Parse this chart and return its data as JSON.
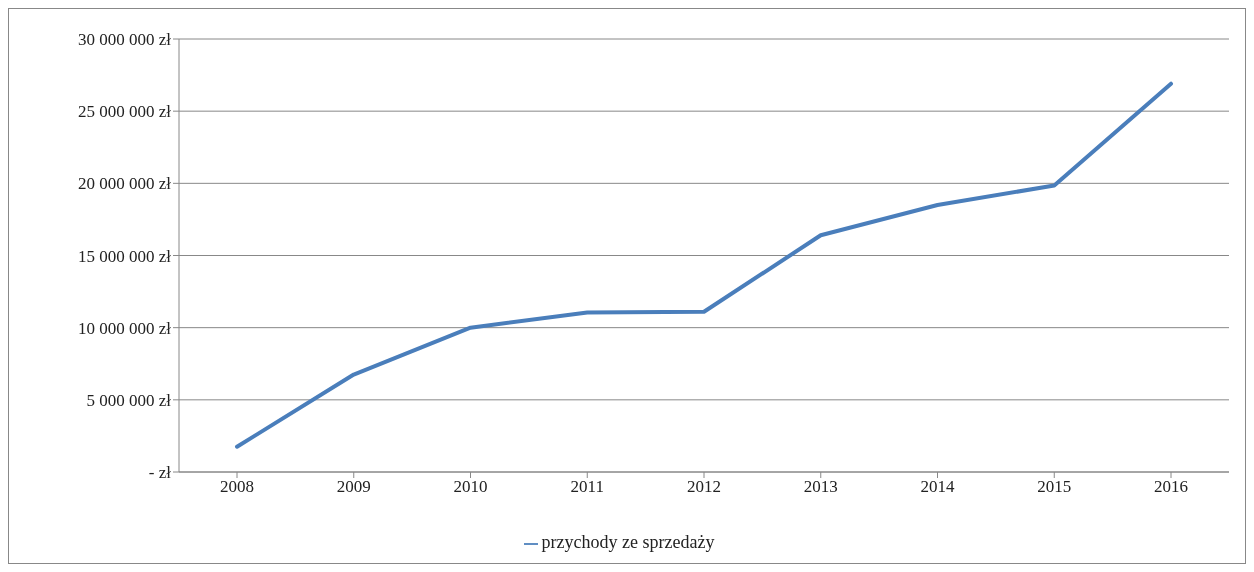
{
  "chart_data": {
    "type": "line",
    "categories": [
      "2008",
      "2009",
      "2010",
      "2011",
      "2012",
      "2013",
      "2014",
      "2015",
      "2016"
    ],
    "series": [
      {
        "name": "przychody ze sprzedaży",
        "color": "#4a7ebb",
        "values": [
          1750000,
          6750000,
          10000000,
          11050000,
          11100000,
          16400000,
          18500000,
          19850000,
          26900000
        ]
      }
    ],
    "ylim": [
      0,
      30000000
    ],
    "yticks": [
      {
        "value": 0,
        "label": "- zł"
      },
      {
        "value": 5000000,
        "label": "5 000 000 zł"
      },
      {
        "value": 10000000,
        "label": "10 000 000 zł"
      },
      {
        "value": 15000000,
        "label": "15 000 000 zł"
      },
      {
        "value": 20000000,
        "label": "20 000 000 zł"
      },
      {
        "value": 25000000,
        "label": "25 000 000 zł"
      },
      {
        "value": 30000000,
        "label": "30 000 000 zł"
      }
    ],
    "grid": "y",
    "legend": "bottom",
    "marker": "none",
    "line_style": "solid"
  }
}
